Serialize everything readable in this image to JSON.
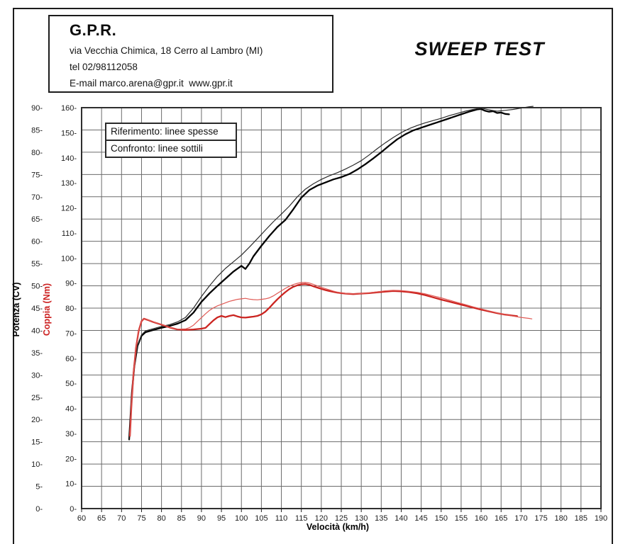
{
  "header": {
    "company": "G.P.R.",
    "address": "via Vecchia Chimica, 18 Cerro al Lambro (MI)",
    "phone": "tel 02/98112058",
    "email_line": "E-mail marco.arena@gpr.it  www.gpr.it"
  },
  "title": "SWEEP TEST",
  "legend": {
    "reference": "Riferimento: linee spesse",
    "comparison": "Confronto: linee sottili"
  },
  "chart_data": {
    "type": "line",
    "title": "SWEEP TEST",
    "xlabel": "Velocità (km/h)",
    "grid": true,
    "legend_position": "top-left inside plot",
    "x_axis": {
      "label": "Velocità (km/h)",
      "range": [
        60,
        190
      ],
      "tick_step": 5
    },
    "power_axis": {
      "label": "Potenza (CV)",
      "range": [
        0,
        90
      ],
      "tick_step": 5,
      "color": "#000000"
    },
    "torque_axis": {
      "label": "Coppia (Nm)",
      "range": [
        0,
        160
      ],
      "tick_step": 10,
      "color": "#cc2222"
    },
    "colors": {
      "power_reference": "#000000",
      "power_comparison": "#2b2b2b",
      "torque_reference": "#cb2420",
      "torque_comparison": "#e05a55",
      "grid": "#6b6b6b",
      "frame": "#2f2f2f",
      "tick_text": "#1d1d1d"
    },
    "series": [
      {
        "id": "power-reference",
        "name": "Potenza riferimento (linea spessa)",
        "axis": "power",
        "unit": "CV",
        "line": "thick",
        "color": "#000000",
        "points": [
          [
            71.9,
            15.5
          ],
          [
            72.2,
            20
          ],
          [
            72.6,
            26
          ],
          [
            73.2,
            32
          ],
          [
            74,
            36.5
          ],
          [
            75,
            38.8
          ],
          [
            76,
            39.6
          ],
          [
            78,
            40.1
          ],
          [
            80,
            40.6
          ],
          [
            82,
            41
          ],
          [
            84,
            41.5
          ],
          [
            86,
            42.3
          ],
          [
            88,
            44
          ],
          [
            90,
            46.4
          ],
          [
            92,
            48.3
          ],
          [
            94,
            50
          ],
          [
            96,
            51.6
          ],
          [
            98,
            53.2
          ],
          [
            100,
            54.5
          ],
          [
            101,
            53.8
          ],
          [
            102,
            55
          ],
          [
            103,
            56.6
          ],
          [
            105,
            59
          ],
          [
            107,
            61.2
          ],
          [
            109,
            63.2
          ],
          [
            111,
            64.8
          ],
          [
            113,
            67.2
          ],
          [
            115,
            69.8
          ],
          [
            117,
            71.5
          ],
          [
            119,
            72.5
          ],
          [
            121,
            73.2
          ],
          [
            123,
            73.9
          ],
          [
            125,
            74.4
          ],
          [
            127,
            75.1
          ],
          [
            129,
            76.1
          ],
          [
            131,
            77.3
          ],
          [
            133,
            78.6
          ],
          [
            135,
            80
          ],
          [
            137,
            81.5
          ],
          [
            139,
            82.9
          ],
          [
            141,
            84
          ],
          [
            143,
            84.9
          ],
          [
            145,
            85.5
          ],
          [
            147,
            86.1
          ],
          [
            149,
            86.7
          ],
          [
            151,
            87.3
          ],
          [
            153,
            87.9
          ],
          [
            155,
            88.5
          ],
          [
            157,
            89.1
          ],
          [
            159,
            89.6
          ],
          [
            160,
            89.7
          ],
          [
            161,
            89.3
          ],
          [
            162,
            89.1
          ],
          [
            163,
            89.2
          ],
          [
            164,
            88.8
          ],
          [
            165,
            88.9
          ],
          [
            166,
            88.6
          ],
          [
            167,
            88.5
          ]
        ]
      },
      {
        "id": "power-comparison",
        "name": "Potenza confronto (linea sottile)",
        "axis": "power",
        "unit": "CV",
        "line": "thin",
        "color": "#2b2b2b",
        "points": [
          [
            71.9,
            15.5
          ],
          [
            72.2,
            20
          ],
          [
            72.6,
            26
          ],
          [
            73.2,
            32
          ],
          [
            74,
            36.5
          ],
          [
            75,
            39
          ],
          [
            76,
            39.9
          ],
          [
            78,
            40.4
          ],
          [
            80,
            40.9
          ],
          [
            82,
            41.3
          ],
          [
            84,
            41.9
          ],
          [
            86,
            42.9
          ],
          [
            88,
            45
          ],
          [
            90,
            47.6
          ],
          [
            92,
            50
          ],
          [
            94,
            52.1
          ],
          [
            96,
            53.9
          ],
          [
            98,
            55.4
          ],
          [
            100,
            56.9
          ],
          [
            102,
            58.7
          ],
          [
            104,
            60.6
          ],
          [
            106,
            62.5
          ],
          [
            108,
            64.4
          ],
          [
            110,
            66.1
          ],
          [
            112,
            67.9
          ],
          [
            114,
            70
          ],
          [
            116,
            71.7
          ],
          [
            118,
            72.9
          ],
          [
            120,
            73.9
          ],
          [
            122,
            74.7
          ],
          [
            124,
            75.4
          ],
          [
            126,
            76.2
          ],
          [
            128,
            77.1
          ],
          [
            130,
            78.1
          ],
          [
            132,
            79.4
          ],
          [
            134,
            80.8
          ],
          [
            136,
            82.1
          ],
          [
            138,
            83.3
          ],
          [
            140,
            84.4
          ],
          [
            142,
            85.3
          ],
          [
            144,
            86
          ],
          [
            146,
            86.6
          ],
          [
            148,
            87.1
          ],
          [
            150,
            87.6
          ],
          [
            152,
            88.2
          ],
          [
            154,
            88.7
          ],
          [
            156,
            89.2
          ],
          [
            158,
            89.6
          ],
          [
            160,
            89.9
          ],
          [
            162,
            89.5
          ],
          [
            164,
            89.2
          ],
          [
            166,
            89.4
          ],
          [
            168,
            89.6
          ],
          [
            170,
            89.9
          ],
          [
            172,
            90.2
          ],
          [
            173,
            90.3
          ]
        ]
      },
      {
        "id": "torque-reference",
        "name": "Coppia riferimento (linea spessa)",
        "axis": "torque",
        "unit": "Nm",
        "line": "thick",
        "color": "#cb2420",
        "points": [
          [
            72.1,
            29
          ],
          [
            72.5,
            42
          ],
          [
            73,
            54
          ],
          [
            73.6,
            64
          ],
          [
            74.3,
            71
          ],
          [
            75,
            74.8
          ],
          [
            75.6,
            75.8
          ],
          [
            76.5,
            75.3
          ],
          [
            78,
            74.4
          ],
          [
            80,
            73.4
          ],
          [
            82,
            72.3
          ],
          [
            84,
            71.5
          ],
          [
            86,
            71.3
          ],
          [
            88,
            71.5
          ],
          [
            90,
            71.8
          ],
          [
            91,
            72.1
          ],
          [
            92,
            73.6
          ],
          [
            93,
            75.1
          ],
          [
            94,
            76.3
          ],
          [
            95,
            76.9
          ],
          [
            96,
            76.4
          ],
          [
            97,
            76.9
          ],
          [
            98,
            77.2
          ],
          [
            99,
            76.7
          ],
          [
            100,
            76.3
          ],
          [
            101,
            76.2
          ],
          [
            102,
            76.4
          ],
          [
            103,
            76.6
          ],
          [
            104,
            76.9
          ],
          [
            105,
            77.5
          ],
          [
            106,
            78.6
          ],
          [
            107,
            80.1
          ],
          [
            108,
            81.9
          ],
          [
            109,
            83.5
          ],
          [
            110,
            85
          ],
          [
            111,
            86.4
          ],
          [
            112,
            87.6
          ],
          [
            113,
            88.5
          ],
          [
            114,
            89.1
          ],
          [
            115,
            89.5
          ],
          [
            116,
            89.6
          ],
          [
            117,
            89.3
          ],
          [
            118,
            88.7
          ],
          [
            119,
            88.2
          ],
          [
            120,
            87.7
          ],
          [
            121,
            87.2
          ],
          [
            122,
            86.8
          ],
          [
            123,
            86.5
          ],
          [
            124,
            86.2
          ],
          [
            125,
            86
          ],
          [
            126,
            85.8
          ],
          [
            127,
            85.7
          ],
          [
            128,
            85.6
          ],
          [
            129,
            85.7
          ],
          [
            130,
            85.8
          ],
          [
            132,
            86
          ],
          [
            134,
            86.3
          ],
          [
            136,
            86.6
          ],
          [
            138,
            86.8
          ],
          [
            140,
            86.7
          ],
          [
            142,
            86.4
          ],
          [
            144,
            85.9
          ],
          [
            146,
            85.2
          ],
          [
            148,
            84.3
          ],
          [
            150,
            83.4
          ],
          [
            152,
            82.6
          ],
          [
            154,
            81.8
          ],
          [
            156,
            81
          ],
          [
            158,
            80.2
          ],
          [
            160,
            79.4
          ],
          [
            162,
            78.7
          ],
          [
            164,
            78
          ],
          [
            166,
            77.4
          ],
          [
            168,
            77
          ],
          [
            169,
            76.8
          ]
        ]
      },
      {
        "id": "torque-comparison",
        "name": "Coppia confronto (linea sottile)",
        "axis": "torque",
        "unit": "Nm",
        "line": "thin",
        "color": "#e05a55",
        "points": [
          [
            72.1,
            29
          ],
          [
            72.5,
            42
          ],
          [
            73,
            54
          ],
          [
            73.6,
            64
          ],
          [
            74.3,
            71
          ],
          [
            75,
            74.8
          ],
          [
            75.6,
            75.8
          ],
          [
            76.5,
            75.4
          ],
          [
            78,
            74.5
          ],
          [
            80,
            73.5
          ],
          [
            82,
            72.4
          ],
          [
            84,
            71.6
          ],
          [
            86,
            71.7
          ],
          [
            87,
            72.2
          ],
          [
            88,
            73.2
          ],
          [
            89,
            74.7
          ],
          [
            90,
            76.2
          ],
          [
            91,
            77.7
          ],
          [
            92,
            79.1
          ],
          [
            93,
            80.1
          ],
          [
            94,
            80.9
          ],
          [
            95,
            81.5
          ],
          [
            96,
            82.1
          ],
          [
            97,
            82.7
          ],
          [
            98,
            83.1
          ],
          [
            99,
            83.5
          ],
          [
            100,
            83.7
          ],
          [
            101,
            83.9
          ],
          [
            102,
            83.6
          ],
          [
            103,
            83.4
          ],
          [
            104,
            83.3
          ],
          [
            105,
            83.5
          ],
          [
            106,
            83.7
          ],
          [
            107,
            84.1
          ],
          [
            108,
            84.9
          ],
          [
            109,
            85.9
          ],
          [
            110,
            86.9
          ],
          [
            111,
            87.9
          ],
          [
            112,
            88.7
          ],
          [
            113,
            89.4
          ],
          [
            114,
            89.9
          ],
          [
            115,
            90.2
          ],
          [
            116,
            90.3
          ],
          [
            117,
            90
          ],
          [
            118,
            89.5
          ],
          [
            119,
            88.9
          ],
          [
            120,
            88.3
          ],
          [
            121,
            87.8
          ],
          [
            122,
            87.3
          ],
          [
            123,
            86.8
          ],
          [
            124,
            86.4
          ],
          [
            125,
            86.1
          ],
          [
            126,
            85.9
          ],
          [
            127,
            85.8
          ],
          [
            128,
            85.7
          ],
          [
            129,
            85.7
          ],
          [
            130,
            85.8
          ],
          [
            132,
            86.1
          ],
          [
            134,
            86.5
          ],
          [
            136,
            86.9
          ],
          [
            138,
            87.1
          ],
          [
            140,
            87
          ],
          [
            142,
            86.7
          ],
          [
            144,
            86.3
          ],
          [
            146,
            85.7
          ],
          [
            148,
            84.9
          ],
          [
            150,
            84.1
          ],
          [
            152,
            83.2
          ],
          [
            154,
            82.3
          ],
          [
            156,
            81.4
          ],
          [
            158,
            80.5
          ],
          [
            160,
            79.7
          ],
          [
            162,
            78.9
          ],
          [
            164,
            78.1
          ],
          [
            166,
            77.4
          ],
          [
            168,
            76.8
          ],
          [
            170,
            76.3
          ],
          [
            172,
            75.9
          ],
          [
            172.7,
            75.7
          ]
        ]
      }
    ]
  }
}
